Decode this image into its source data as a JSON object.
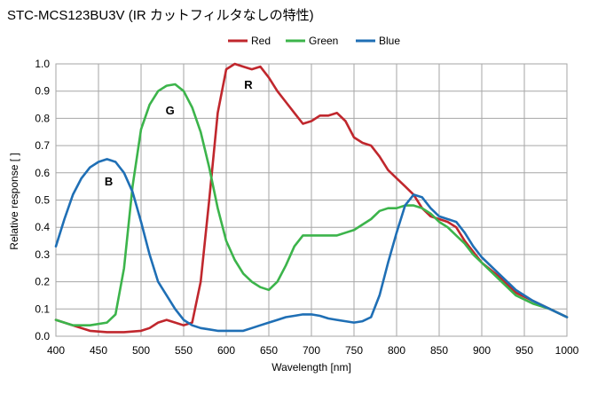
{
  "title": "STC-MCS123BU3V (IR カットフィルタなしの特性)",
  "chart_data": {
    "type": "line",
    "xlabel": "Wavelength [nm]",
    "ylabel": "Relative response [ ]",
    "xlim": [
      400,
      1000
    ],
    "ylim": [
      0,
      1.0
    ],
    "xticks": [
      "400",
      "450",
      "500",
      "550",
      "600",
      "650",
      "700",
      "750",
      "800",
      "850",
      "900",
      "950",
      "1000"
    ],
    "yticks": [
      "0.0",
      "0.1",
      "0.2",
      "0.3",
      "0.4",
      "0.5",
      "0.6",
      "0.7",
      "0.8",
      "0.9",
      "1.0"
    ],
    "grid": true,
    "legend_position": "top",
    "series": [
      {
        "name": "Red",
        "color": "#c0272d",
        "x": [
          400,
          420,
          440,
          460,
          480,
          500,
          510,
          520,
          530,
          540,
          550,
          560,
          570,
          580,
          590,
          600,
          610,
          620,
          630,
          640,
          650,
          660,
          670,
          680,
          690,
          700,
          710,
          720,
          730,
          740,
          750,
          760,
          770,
          780,
          790,
          800,
          810,
          820,
          830,
          840,
          850,
          860,
          870,
          880,
          890,
          900,
          920,
          940,
          960,
          980,
          1000
        ],
        "values": [
          0.06,
          0.04,
          0.02,
          0.015,
          0.015,
          0.02,
          0.03,
          0.05,
          0.06,
          0.05,
          0.04,
          0.05,
          0.2,
          0.5,
          0.82,
          0.98,
          1.0,
          0.99,
          0.98,
          0.99,
          0.95,
          0.9,
          0.86,
          0.82,
          0.78,
          0.79,
          0.81,
          0.81,
          0.82,
          0.79,
          0.73,
          0.71,
          0.7,
          0.66,
          0.61,
          0.58,
          0.55,
          0.52,
          0.47,
          0.44,
          0.43,
          0.42,
          0.4,
          0.35,
          0.31,
          0.27,
          0.22,
          0.16,
          0.13,
          0.1,
          0.07
        ]
      },
      {
        "name": "Green",
        "color": "#3cb44b",
        "x": [
          400,
          420,
          440,
          460,
          470,
          480,
          490,
          500,
          510,
          520,
          530,
          540,
          550,
          560,
          570,
          580,
          590,
          600,
          610,
          620,
          630,
          640,
          650,
          660,
          670,
          680,
          690,
          700,
          710,
          720,
          730,
          740,
          750,
          760,
          770,
          780,
          790,
          800,
          810,
          820,
          830,
          840,
          850,
          860,
          870,
          880,
          890,
          900,
          920,
          940,
          960,
          980,
          1000
        ],
        "values": [
          0.06,
          0.04,
          0.04,
          0.05,
          0.08,
          0.25,
          0.55,
          0.76,
          0.85,
          0.9,
          0.92,
          0.925,
          0.9,
          0.84,
          0.75,
          0.62,
          0.47,
          0.35,
          0.28,
          0.23,
          0.2,
          0.18,
          0.17,
          0.2,
          0.26,
          0.33,
          0.37,
          0.37,
          0.37,
          0.37,
          0.37,
          0.38,
          0.39,
          0.41,
          0.43,
          0.46,
          0.47,
          0.47,
          0.48,
          0.48,
          0.47,
          0.45,
          0.42,
          0.4,
          0.37,
          0.34,
          0.3,
          0.27,
          0.21,
          0.15,
          0.12,
          0.1,
          0.07
        ]
      },
      {
        "name": "Blue",
        "color": "#1f6fb5",
        "x": [
          400,
          410,
          420,
          430,
          440,
          450,
          460,
          470,
          480,
          490,
          500,
          510,
          520,
          530,
          540,
          550,
          560,
          570,
          580,
          590,
          600,
          610,
          620,
          630,
          640,
          650,
          660,
          670,
          680,
          690,
          700,
          710,
          720,
          730,
          740,
          750,
          760,
          770,
          780,
          790,
          800,
          810,
          820,
          830,
          840,
          850,
          860,
          870,
          880,
          890,
          900,
          920,
          940,
          960,
          980,
          1000
        ],
        "values": [
          0.33,
          0.43,
          0.52,
          0.58,
          0.62,
          0.64,
          0.65,
          0.64,
          0.6,
          0.53,
          0.42,
          0.3,
          0.2,
          0.15,
          0.1,
          0.06,
          0.04,
          0.03,
          0.025,
          0.02,
          0.02,
          0.02,
          0.02,
          0.03,
          0.04,
          0.05,
          0.06,
          0.07,
          0.075,
          0.08,
          0.08,
          0.075,
          0.065,
          0.06,
          0.055,
          0.05,
          0.055,
          0.07,
          0.15,
          0.27,
          0.38,
          0.48,
          0.52,
          0.51,
          0.47,
          0.44,
          0.43,
          0.42,
          0.38,
          0.33,
          0.29,
          0.23,
          0.17,
          0.13,
          0.1,
          0.07
        ]
      }
    ],
    "annotations": [
      {
        "text": "R",
        "x": 626,
        "y": 0.925
      },
      {
        "text": "G",
        "x": 534,
        "y": 0.83
      },
      {
        "text": "B",
        "x": 462,
        "y": 0.57
      }
    ]
  }
}
